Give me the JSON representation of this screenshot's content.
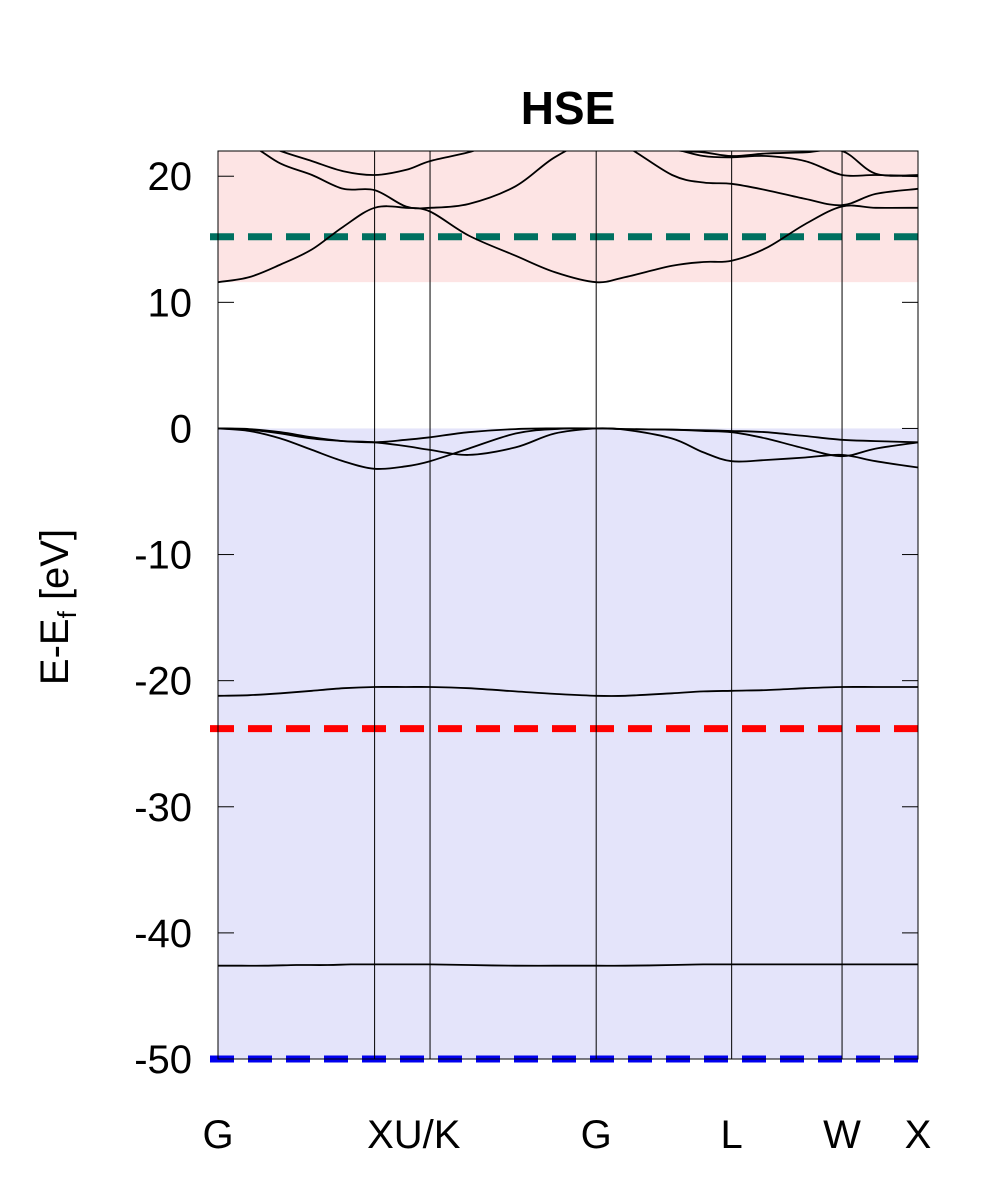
{
  "chart_data": {
    "type": "line",
    "title": "HSE",
    "ylabel": "E-E",
    "ylabel_subscript": "f",
    "ylabel_unit": " [eV]",
    "xlabel": "",
    "ylim": [
      -50,
      22
    ],
    "xlim": [
      0,
      4.47
    ],
    "y_ticks": [
      20,
      10,
      0,
      -10,
      -20,
      -30,
      -40,
      -50
    ],
    "y_tick_labels": [
      "20",
      "10",
      "0",
      "-10",
      "-20",
      "-30",
      "-40",
      "-50"
    ],
    "k_points": [
      {
        "label": "G",
        "x": 0.0
      },
      {
        "label": "X",
        "x": 1.0
      },
      {
        "label": "U/K",
        "x": 1.354
      },
      {
        "label": "G",
        "x": 2.415
      },
      {
        "label": "L",
        "x": 3.28
      },
      {
        "label": "W",
        "x": 3.985
      },
      {
        "label": "X",
        "x": 4.47
      }
    ],
    "x_tick_labels": [
      {
        "label": "G",
        "x": 0.0
      },
      {
        "label": "XU/K",
        "x": 1.25
      },
      {
        "label": "G",
        "x": 2.415
      },
      {
        "label": "L",
        "x": 3.28
      },
      {
        "label": "W",
        "x": 3.985
      },
      {
        "label": "X",
        "x": 4.47
      }
    ],
    "shaded_regions": [
      {
        "name": "conduction",
        "y_from": 11.6,
        "y_to": 22,
        "color": "#fde4e4"
      },
      {
        "name": "valence",
        "y_from": -50,
        "y_to": 0,
        "color": "#e4e4fa"
      }
    ],
    "reference_lines": [
      {
        "y": 15.2,
        "color": "#007060"
      },
      {
        "y": -23.8,
        "color": "#ff0000"
      },
      {
        "y": -50,
        "color": "#0000ee"
      }
    ],
    "grid": false,
    "band_color": "#000000",
    "bands": [
      {
        "x": [
          0,
          0.15,
          0.3,
          0.5,
          0.7,
          0.85,
          1.0,
          1.15,
          1.354,
          1.6,
          1.9,
          2.15,
          2.415,
          2.6,
          2.9,
          3.1,
          3.28,
          3.5,
          3.75,
          3.985,
          4.2,
          4.47
        ],
        "y": [
          -42.6,
          -42.6,
          -42.6,
          -42.55,
          -42.55,
          -42.5,
          -42.5,
          -42.5,
          -42.5,
          -42.55,
          -42.6,
          -42.6,
          -42.6,
          -42.6,
          -42.55,
          -42.5,
          -42.5,
          -42.5,
          -42.5,
          -42.5,
          -42.5,
          -42.5
        ]
      },
      {
        "x": [
          0,
          0.2,
          0.4,
          0.6,
          0.8,
          1.0,
          1.2,
          1.354,
          1.6,
          1.9,
          2.15,
          2.415,
          2.6,
          2.9,
          3.1,
          3.28,
          3.5,
          3.75,
          3.985,
          4.2,
          4.47
        ],
        "y": [
          -21.2,
          -21.15,
          -21.0,
          -20.8,
          -20.6,
          -20.5,
          -20.5,
          -20.5,
          -20.6,
          -20.85,
          -21.05,
          -21.2,
          -21.2,
          -21.0,
          -20.85,
          -20.8,
          -20.75,
          -20.6,
          -20.5,
          -20.5,
          -20.5
        ]
      },
      {
        "x": [
          0,
          0.2,
          0.4,
          0.6,
          0.8,
          1.0,
          1.2,
          1.354,
          1.6,
          1.9,
          2.15,
          2.415,
          2.6,
          2.9,
          3.1,
          3.28,
          3.5,
          3.75,
          3.985,
          4.2,
          4.47
        ],
        "y": [
          0,
          -0.2,
          -0.8,
          -1.7,
          -2.6,
          -3.2,
          -3.0,
          -2.6,
          -1.6,
          -0.4,
          -0.05,
          0,
          -0.1,
          -0.8,
          -1.9,
          -2.6,
          -2.5,
          -2.3,
          -2.1,
          -2.6,
          -3.1
        ]
      },
      {
        "x": [
          0,
          0.2,
          0.4,
          0.6,
          0.8,
          1.0,
          1.2,
          1.354,
          1.6,
          1.9,
          2.15,
          2.415,
          2.6,
          2.9,
          3.1,
          3.28,
          3.5,
          3.75,
          3.985,
          4.2,
          4.47
        ],
        "y": [
          0,
          -0.1,
          -0.4,
          -0.8,
          -1.0,
          -1.1,
          -1.4,
          -1.7,
          -2.1,
          -1.5,
          -0.4,
          0,
          -0.05,
          -0.1,
          -0.2,
          -0.3,
          -0.8,
          -1.6,
          -2.2,
          -1.6,
          -1.1
        ]
      },
      {
        "x": [
          0,
          0.2,
          0.4,
          0.6,
          0.8,
          1.0,
          1.2,
          1.354,
          1.6,
          1.9,
          2.15,
          2.415,
          2.6,
          2.9,
          3.1,
          3.28,
          3.5,
          3.75,
          3.985,
          4.2,
          4.47
        ],
        "y": [
          0,
          -0.05,
          -0.3,
          -0.7,
          -1.0,
          -1.1,
          -0.9,
          -0.7,
          -0.3,
          -0.05,
          0,
          0,
          -0.05,
          -0.1,
          -0.15,
          -0.2,
          -0.3,
          -0.6,
          -0.9,
          -1.0,
          -1.1
        ]
      },
      {
        "x": [
          0,
          0.2,
          0.4,
          0.6,
          0.8,
          1.0,
          1.2,
          1.354,
          1.6,
          1.9,
          2.15,
          2.415,
          2.6,
          2.9,
          3.1,
          3.28,
          3.5,
          3.75,
          3.985,
          4.2,
          4.47
        ],
        "y": [
          11.6,
          12.0,
          13.0,
          14.2,
          16.0,
          17.5,
          17.5,
          17.2,
          15.3,
          13.7,
          12.4,
          11.6,
          12.0,
          12.9,
          13.2,
          13.3,
          14.3,
          16.2,
          17.6,
          17.5,
          17.5
        ]
      },
      {
        "x": [
          0,
          0.2,
          0.4,
          0.6,
          0.8,
          1.0,
          1.2,
          1.354,
          1.6,
          1.9,
          2.15,
          2.415,
          2.6,
          2.9,
          3.1,
          3.28,
          3.5,
          3.75,
          3.985,
          4.2,
          4.47
        ],
        "y": [
          23,
          22.5,
          21.0,
          20.1,
          19.0,
          18.9,
          17.6,
          17.5,
          17.8,
          19.2,
          21.5,
          23,
          22.4,
          20.1,
          19.5,
          19.4,
          18.9,
          18.2,
          17.7,
          18.6,
          19.0
        ]
      },
      {
        "x": [
          0,
          0.2,
          0.4,
          0.6,
          0.8,
          1.0,
          1.2,
          1.354,
          1.6,
          1.9,
          2.15,
          2.415,
          2.6,
          2.9,
          3.1,
          3.28,
          3.5,
          3.75,
          3.985,
          4.2,
          4.47
        ],
        "y": [
          23,
          23,
          22,
          21.2,
          20.4,
          20.1,
          20.5,
          21.2,
          21.9,
          23,
          23,
          23,
          23,
          22.2,
          21.6,
          21.5,
          21.6,
          21.2,
          20.1,
          20.1,
          20.0
        ]
      },
      {
        "x": [
          2.55,
          2.9,
          3.1,
          3.28,
          3.5,
          3.75,
          3.985,
          4.2,
          4.47
        ],
        "y": [
          23,
          22.1,
          21.9,
          21.6,
          21.8,
          21.9,
          22.0,
          20.2,
          20.1
        ]
      }
    ]
  }
}
